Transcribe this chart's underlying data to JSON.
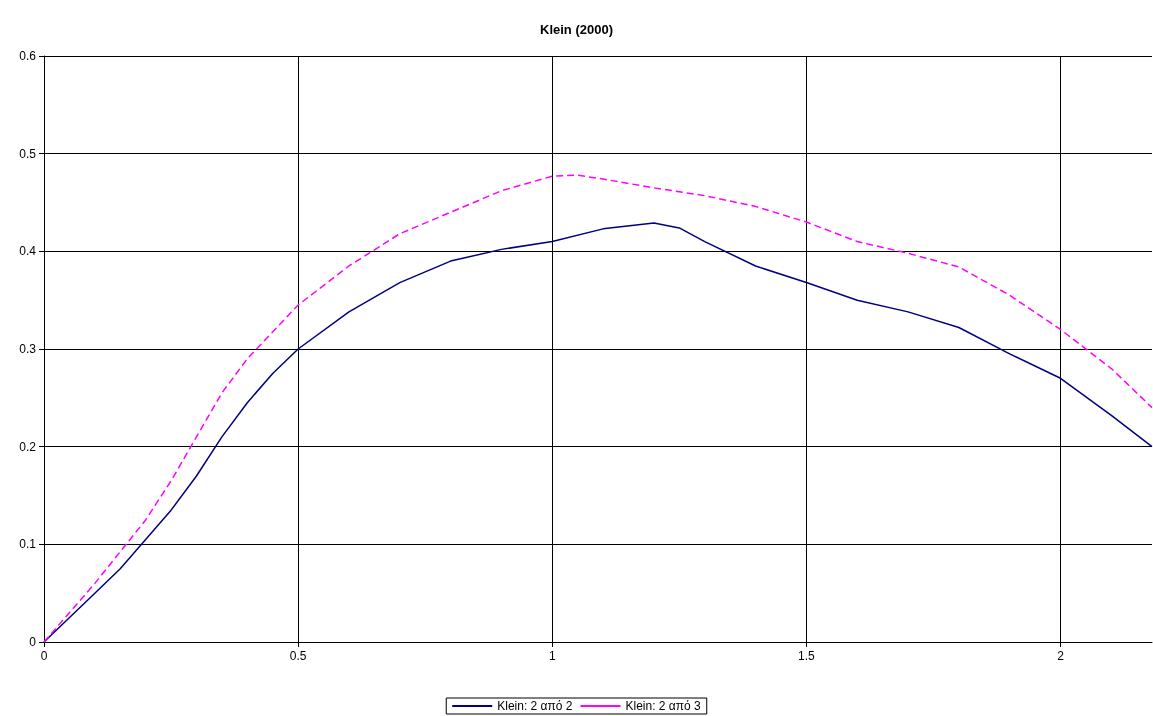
{
  "chart_data": {
    "type": "line",
    "title": "Klein (2000)",
    "xlim": [
      0,
      2.18
    ],
    "xticks": [
      0,
      0.5,
      1,
      1.5,
      2
    ],
    "ylim": [
      0,
      0.6
    ],
    "yticks": [
      0,
      0.1,
      0.2,
      0.3,
      0.4,
      0.5,
      0.6
    ],
    "grid": true,
    "legend": "bottom",
    "marker": "none",
    "series": [
      {
        "name": "Klein: 2 από 2",
        "color": "#000080",
        "line_style": "solid",
        "x": [
          0,
          0.1,
          0.15,
          0.2,
          0.25,
          0.3,
          0.35,
          0.4,
          0.45,
          0.5,
          0.6,
          0.7,
          0.8,
          0.9,
          1.0,
          1.1,
          1.2,
          1.25,
          1.3,
          1.4,
          1.5,
          1.6,
          1.7,
          1.8,
          1.9,
          2.0,
          2.1,
          2.18
        ],
        "values": [
          0,
          0.05,
          0.075,
          0.105,
          0.135,
          0.17,
          0.21,
          0.245,
          0.275,
          0.3,
          0.338,
          0.368,
          0.39,
          0.402,
          0.41,
          0.423,
          0.429,
          0.424,
          0.41,
          0.385,
          0.368,
          0.35,
          0.338,
          0.322,
          0.295,
          0.27,
          0.232,
          0.2
        ]
      },
      {
        "name": "Klein: 2 από 3",
        "color": "#ff00ff",
        "line_style": "dashed",
        "x": [
          0,
          0.1,
          0.2,
          0.25,
          0.3,
          0.35,
          0.4,
          0.5,
          0.6,
          0.7,
          0.8,
          0.9,
          1.0,
          1.05,
          1.1,
          1.2,
          1.3,
          1.4,
          1.5,
          1.6,
          1.7,
          1.8,
          1.9,
          2.0,
          2.1,
          2.18
        ],
        "values": [
          0,
          0.06,
          0.125,
          0.165,
          0.21,
          0.255,
          0.29,
          0.345,
          0.385,
          0.418,
          0.44,
          0.462,
          0.477,
          0.478,
          0.474,
          0.465,
          0.457,
          0.446,
          0.43,
          0.41,
          0.398,
          0.384,
          0.355,
          0.32,
          0.28,
          0.24
        ]
      }
    ]
  }
}
